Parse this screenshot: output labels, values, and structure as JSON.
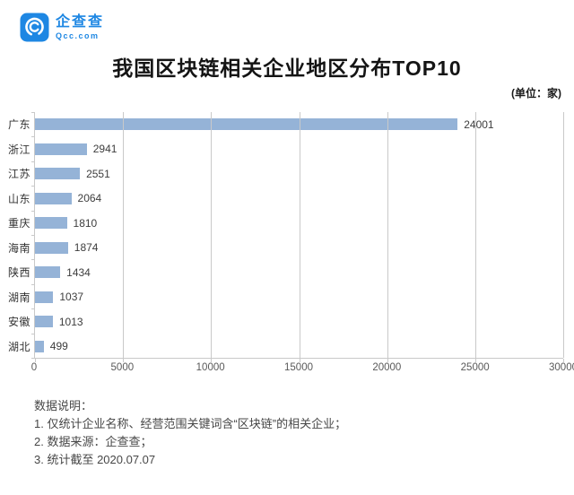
{
  "logo": {
    "name": "企查查",
    "domain": "Qcc.com",
    "brand_color": "#1e87e3"
  },
  "title": "我国区块链相关企业地区分布TOP10",
  "unit_label": "(单位：家)",
  "chart_data": {
    "type": "bar",
    "orientation": "horizontal",
    "title": "我国区块链相关企业地区分布TOP10",
    "unit": "家",
    "categories": [
      "广东",
      "浙江",
      "江苏",
      "山东",
      "重庆",
      "海南",
      "陕西",
      "湖南",
      "安徽",
      "湖北"
    ],
    "values": [
      24001,
      2941,
      2551,
      2064,
      1810,
      1874,
      1434,
      1037,
      1013,
      499
    ],
    "xlim": [
      0,
      30000
    ],
    "xticks": [
      0,
      5000,
      10000,
      15000,
      20000,
      25000,
      30000
    ],
    "grid": true,
    "value_labels": true,
    "bar_color": "#95b3d7",
    "axis_color": "#c9c9c9"
  },
  "footer": {
    "heading": "数据说明：",
    "notes": [
      "1. 仅统计企业名称、经营范围关键词含“区块链”的相关企业；",
      "2. 数据来源：企查查；",
      "3. 统计截至 2020.07.07"
    ]
  }
}
